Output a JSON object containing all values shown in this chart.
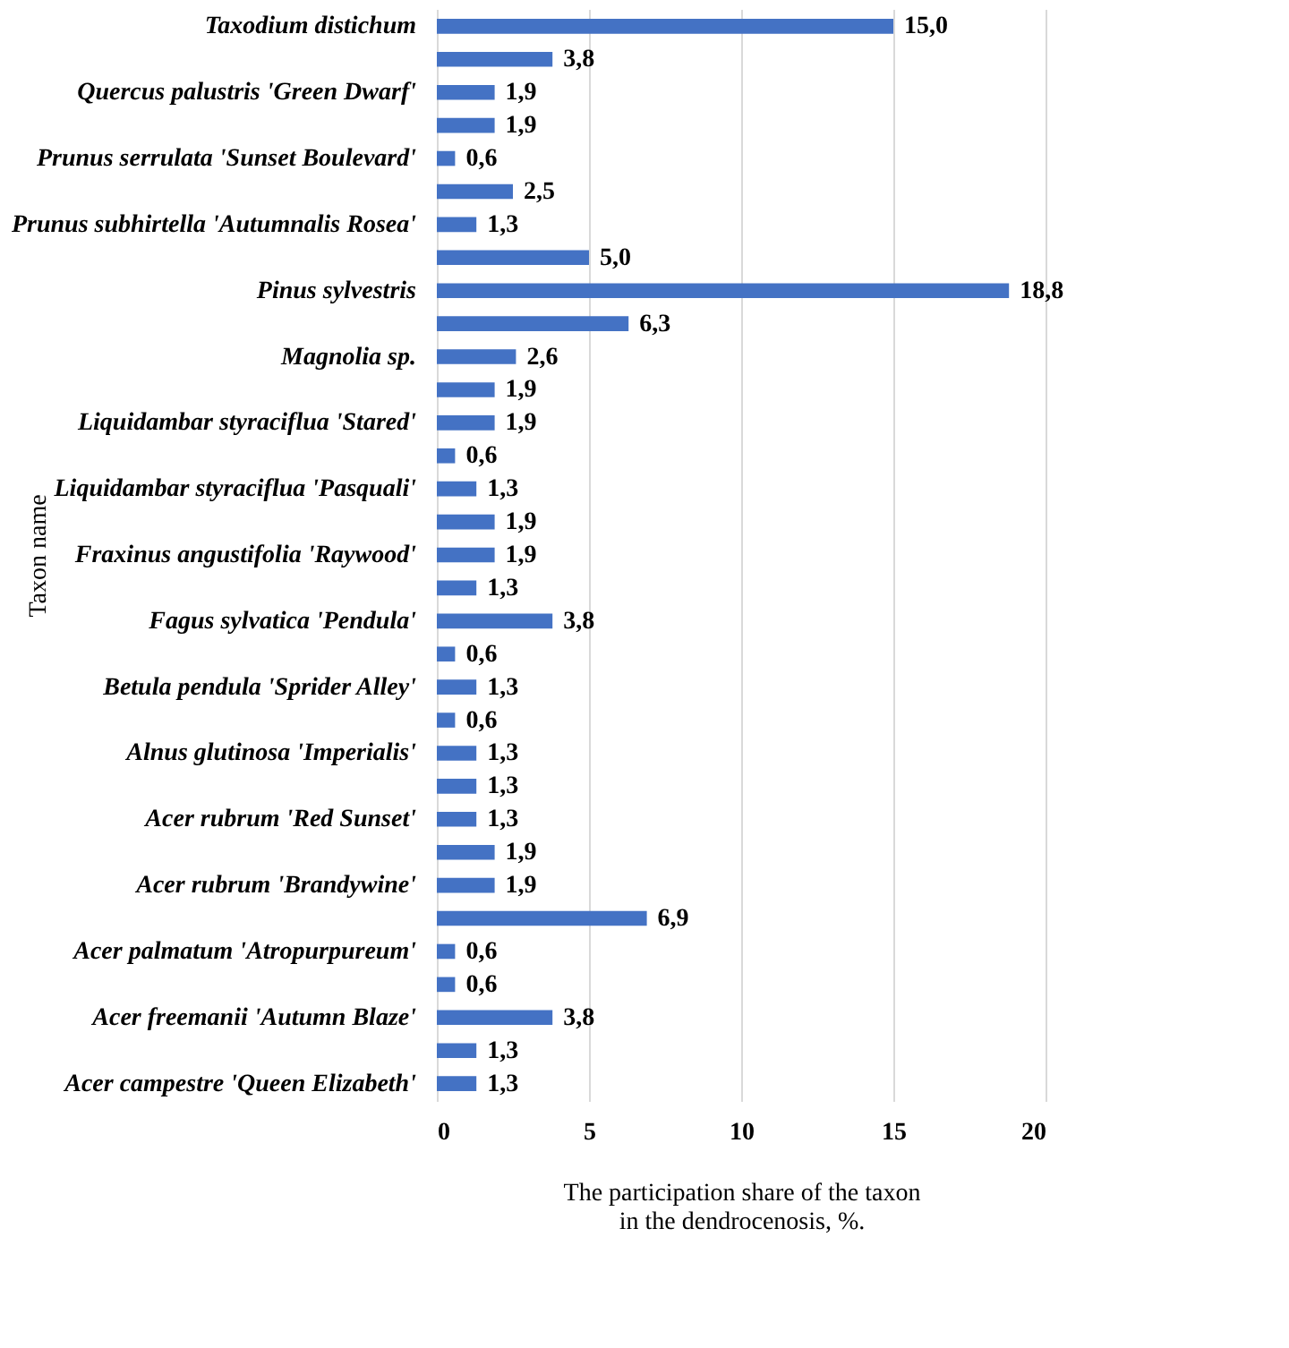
{
  "chart_data": {
    "type": "bar",
    "orientation": "horizontal",
    "xlabel": "The participation share of the taxon in the dendrocenosis, %.",
    "ylabel": "Taxon name",
    "categories": [
      "Taxodium distichum",
      null,
      "Quercus palustris 'Green Dwarf'",
      null,
      "Prunus serrulata 'Sunset Boulevard'",
      null,
      "Prunus subhirtella 'Autumnalis Rosea'",
      null,
      "Pinus sylvestris",
      null,
      "Magnolia sp.",
      null,
      "Liquidambar styraciflua 'Stared'",
      null,
      "Liquidambar styraciflua 'Pasquali'",
      null,
      "Fraxinus angustifolia 'Raywood'",
      null,
      "Fagus sylvatica 'Pendula'",
      null,
      "Betula pendula 'Sprider Alley'",
      null,
      "Alnus glutinosa 'Imperialis'",
      null,
      "Acer rubrum 'Red Sunset'",
      null,
      "Acer rubrum 'Brandywine'",
      null,
      "Acer palmatum 'Atropurpureum'",
      null,
      "Acer freemanii 'Autumn Blaze'",
      null,
      "Acer campestre 'Queen Elizabeth'"
    ],
    "values": [
      15.0,
      3.8,
      1.9,
      1.9,
      0.6,
      2.5,
      1.3,
      5.0,
      18.8,
      6.3,
      2.6,
      1.9,
      1.9,
      0.6,
      1.3,
      1.9,
      1.9,
      1.3,
      3.8,
      0.6,
      1.3,
      0.6,
      1.3,
      1.3,
      1.3,
      1.9,
      1.9,
      6.9,
      0.6,
      0.6,
      3.8,
      1.3,
      1.3
    ],
    "value_labels": [
      "15,0",
      "3,8",
      "1,9",
      "1,9",
      "0,6",
      "2,5",
      "1,3",
      "5,0",
      "18,8",
      "6,3",
      "2,6",
      "1,9",
      "1,9",
      "0,6",
      "1,3",
      "1,9",
      "1,9",
      "1,3",
      "3,8",
      "0,6",
      "1,3",
      "0,6",
      "1,3",
      "1,3",
      "1,3",
      "1,9",
      "1,9",
      "6,9",
      "0,6",
      "0,6",
      "3,8",
      "1,3",
      "1,3"
    ],
    "color": "#4472c4",
    "xlim": [
      0,
      20
    ],
    "xticks": [
      0,
      5,
      10,
      15,
      20
    ],
    "grid": "x"
  }
}
